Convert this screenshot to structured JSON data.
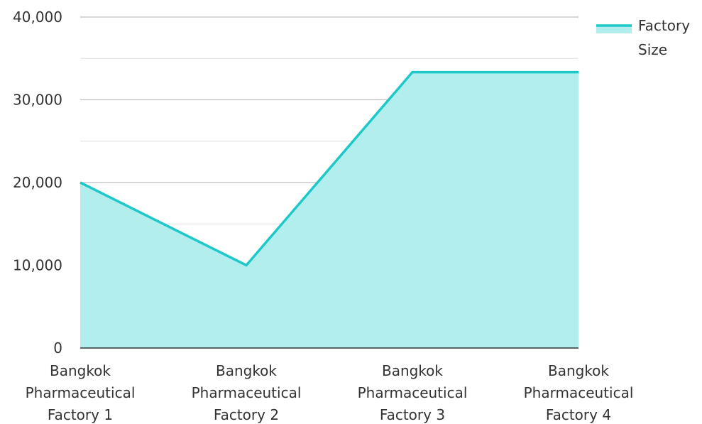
{
  "colors": {
    "line": "#1ec8c8",
    "fill": "#b3eeee",
    "grid_major": "#bfbfbf",
    "grid_minor": "#e4e4e4",
    "axis": "#333333",
    "text": "#333333"
  },
  "chart_data": {
    "type": "area",
    "title": "",
    "xlabel": "",
    "ylabel": "",
    "categories": [
      "Bangkok Pharmaceutical Factory 1",
      "Bangkok Pharmaceutical Factory 2",
      "Bangkok Pharmaceutical Factory 3",
      "Bangkok Pharmaceutical Factory 4"
    ],
    "series": [
      {
        "name": "Factory Size",
        "values": [
          20000,
          10000,
          33333,
          33333
        ]
      }
    ],
    "ylim": [
      0,
      40000
    ],
    "y_ticks": [
      "0",
      "10,000",
      "20,000",
      "30,000",
      "40,000"
    ],
    "grid": true,
    "legend_position": "top-right"
  }
}
